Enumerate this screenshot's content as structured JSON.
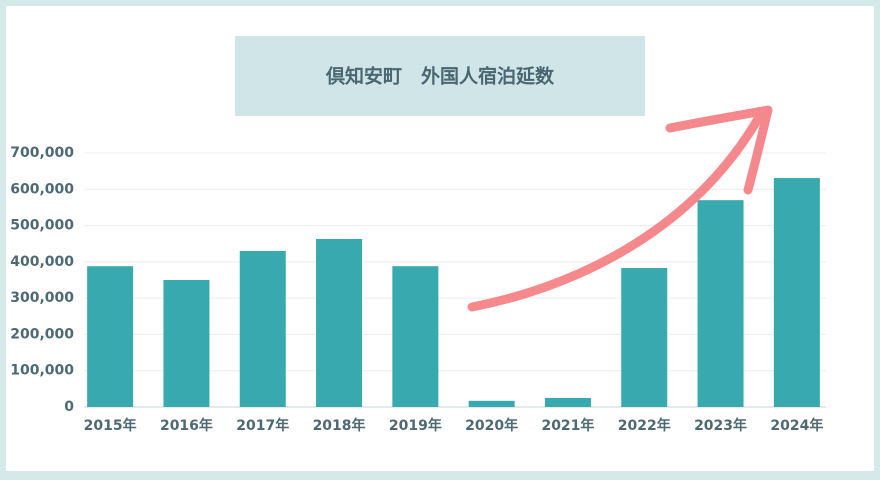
{
  "chart_data": {
    "type": "bar",
    "title": "倶知安町　外国人宿泊延数",
    "categories": [
      "2015年",
      "2016年",
      "2017年",
      "2018年",
      "2019年",
      "2020年",
      "2021年",
      "2022年",
      "2023年",
      "2024年"
    ],
    "values": [
      388000,
      350000,
      430000,
      463000,
      388000,
      17000,
      25000,
      383000,
      570000,
      631000
    ],
    "color": "#37a9af",
    "ylim": [
      0,
      700000
    ],
    "yticks": [
      {
        "value": 0,
        "label": "0"
      },
      {
        "value": 100000,
        "label": "100,000"
      },
      {
        "value": 200000,
        "label": "200,000"
      },
      {
        "value": 300000,
        "label": "300,000"
      },
      {
        "value": 400000,
        "label": "400,000"
      },
      {
        "value": 500000,
        "label": "500,000"
      },
      {
        "value": 600000,
        "label": "600,000"
      },
      {
        "value": 700000,
        "label": "700,000"
      }
    ],
    "grid": true
  }
}
